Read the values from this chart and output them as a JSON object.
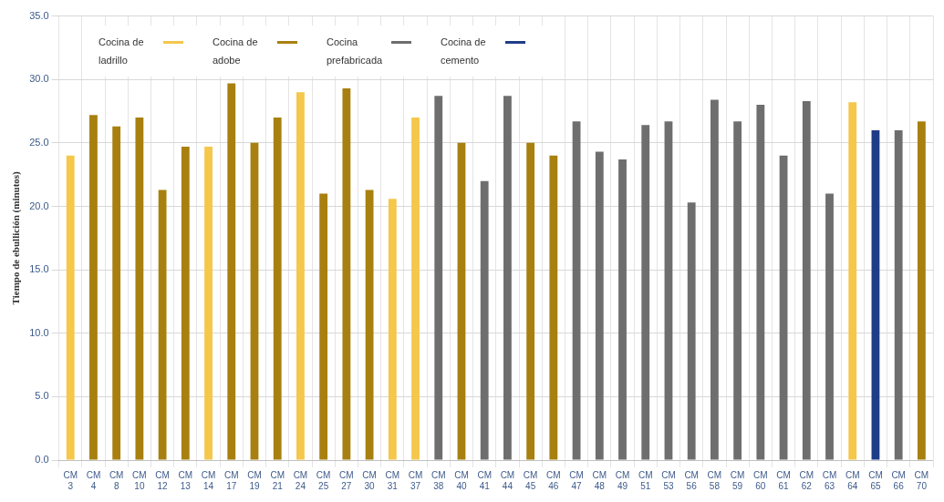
{
  "chart_data": {
    "type": "bar",
    "ylabel": "Tiempo de ebullición (minutos)",
    "categories": [
      "CM 3",
      "CM 4",
      "CM 8",
      "CM 10",
      "CM 12",
      "CM 13",
      "CM 14",
      "CM 17",
      "CM 19",
      "CM 21",
      "CM 24",
      "CM 25",
      "CM 27",
      "CM 30",
      "CM 31",
      "CM 37",
      "CM 38",
      "CM 40",
      "CM 41",
      "CM 44",
      "CM 45",
      "CM 46",
      "CM 47",
      "CM 48",
      "CM 49",
      "CM 51",
      "CM 53",
      "CM 56",
      "CM 58",
      "CM 59",
      "CM 60",
      "CM 61",
      "CM 62",
      "CM 63",
      "CM 64",
      "CM 65",
      "CM 66",
      "CM 70"
    ],
    "series": [
      {
        "name": "Cocina de ladrillo",
        "color": "#f5c74a",
        "values": [
          24.0,
          null,
          null,
          null,
          null,
          null,
          24.7,
          null,
          null,
          null,
          29.0,
          null,
          null,
          null,
          20.6,
          27.0,
          null,
          null,
          null,
          null,
          null,
          null,
          null,
          null,
          null,
          null,
          null,
          null,
          null,
          null,
          null,
          null,
          null,
          null,
          28.2,
          null,
          null,
          null
        ]
      },
      {
        "name": "Cocina de adobe",
        "color": "#a8800f",
        "values": [
          null,
          27.2,
          26.3,
          27.0,
          21.3,
          24.7,
          null,
          29.7,
          25.0,
          27.0,
          null,
          21.0,
          29.3,
          21.3,
          null,
          null,
          null,
          25.0,
          null,
          null,
          25.0,
          24.0,
          null,
          null,
          null,
          null,
          null,
          null,
          null,
          null,
          null,
          null,
          null,
          null,
          null,
          null,
          null,
          26.7
        ]
      },
      {
        "name": "Cocina prefabricada",
        "color": "#6e6e6e",
        "values": [
          null,
          null,
          null,
          null,
          null,
          null,
          null,
          null,
          null,
          null,
          null,
          null,
          null,
          null,
          null,
          null,
          28.7,
          null,
          22.0,
          28.7,
          null,
          null,
          26.7,
          24.3,
          23.7,
          26.4,
          26.7,
          20.3,
          28.4,
          26.7,
          28.0,
          24.0,
          28.3,
          21.0,
          null,
          null,
          26.0,
          null
        ]
      },
      {
        "name": "Cocina de cemento",
        "color": "#1f3c88",
        "values": [
          null,
          null,
          null,
          null,
          null,
          null,
          null,
          null,
          null,
          null,
          null,
          null,
          null,
          null,
          null,
          null,
          null,
          null,
          null,
          null,
          null,
          null,
          null,
          null,
          null,
          null,
          null,
          null,
          null,
          null,
          null,
          null,
          null,
          null,
          null,
          26.0,
          null,
          null
        ]
      }
    ],
    "ylim": [
      0,
      35
    ],
    "yticks": [
      {
        "value": 0,
        "label": "0.0"
      },
      {
        "value": 5,
        "label": "5.0"
      },
      {
        "value": 10,
        "label": "10.0"
      },
      {
        "value": 15,
        "label": "15.0"
      },
      {
        "value": 20,
        "label": "20.0"
      },
      {
        "value": 25,
        "label": "25.0"
      },
      {
        "value": 30,
        "label": "30.0"
      },
      {
        "value": 35,
        "label": "35.0"
      }
    ],
    "grid": true,
    "legend": "top left"
  }
}
